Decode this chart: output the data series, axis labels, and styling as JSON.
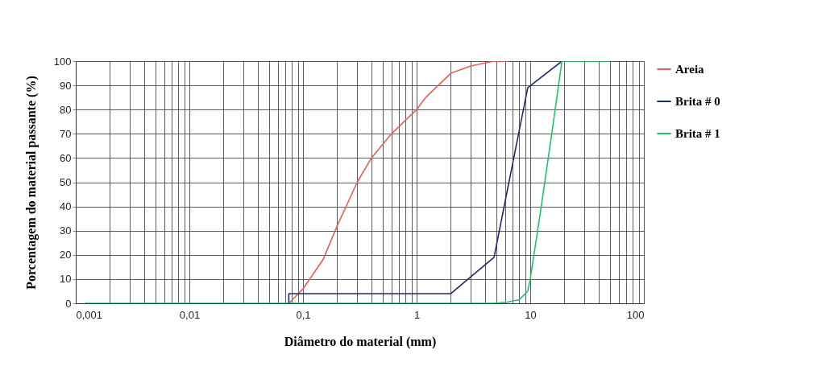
{
  "chart_data": {
    "type": "line",
    "xlabel": "Diâmetro do material (mm)",
    "ylabel": "Porcentagem do material passante (%)",
    "log": "x",
    "grid": true,
    "legend": "right",
    "line_style": "solid",
    "marker": "none",
    "xlim": [
      0.001,
      100
    ],
    "ylim": [
      0,
      100
    ],
    "xticks": [
      {
        "value": 0.001,
        "label": "0,001"
      },
      {
        "value": 0.002,
        "label": null
      },
      {
        "value": 0.003,
        "label": null
      },
      {
        "value": 0.004,
        "label": null
      },
      {
        "value": 0.005,
        "label": null
      },
      {
        "value": 0.006,
        "label": null
      },
      {
        "value": 0.007,
        "label": null
      },
      {
        "value": 0.008,
        "label": null
      },
      {
        "value": 0.009,
        "label": null
      },
      {
        "value": 0.01,
        "label": "0,01"
      },
      {
        "value": 0.02,
        "label": null
      },
      {
        "value": 0.03,
        "label": null
      },
      {
        "value": 0.04,
        "label": null
      },
      {
        "value": 0.05,
        "label": null
      },
      {
        "value": 0.06,
        "label": null
      },
      {
        "value": 0.07,
        "label": null
      },
      {
        "value": 0.08,
        "label": null
      },
      {
        "value": 0.09,
        "label": null
      },
      {
        "value": 0.1,
        "label": "0,1"
      },
      {
        "value": 0.2,
        "label": null
      },
      {
        "value": 0.3,
        "label": null
      },
      {
        "value": 0.4,
        "label": null
      },
      {
        "value": 0.5,
        "label": null
      },
      {
        "value": 0.6,
        "label": null
      },
      {
        "value": 0.7,
        "label": null
      },
      {
        "value": 0.8,
        "label": null
      },
      {
        "value": 0.9,
        "label": null
      },
      {
        "value": 1,
        "label": "1"
      },
      {
        "value": 2,
        "label": null
      },
      {
        "value": 3,
        "label": null
      },
      {
        "value": 4,
        "label": null
      },
      {
        "value": 5,
        "label": null
      },
      {
        "value": 6,
        "label": null
      },
      {
        "value": 7,
        "label": null
      },
      {
        "value": 8,
        "label": null
      },
      {
        "value": 9,
        "label": null
      },
      {
        "value": 10,
        "label": "10"
      },
      {
        "value": 20,
        "label": null
      },
      {
        "value": 30,
        "label": null
      },
      {
        "value": 40,
        "label": null
      },
      {
        "value": 50,
        "label": null
      },
      {
        "value": 60,
        "label": null
      },
      {
        "value": 70,
        "label": null
      },
      {
        "value": 80,
        "label": null
      },
      {
        "value": 90,
        "label": null
      },
      {
        "value": 100,
        "label": "100"
      }
    ],
    "yticks": [
      0,
      10,
      20,
      30,
      40,
      50,
      60,
      70,
      80,
      90,
      100
    ],
    "series": [
      {
        "name": "Areia",
        "color": "#e0625a",
        "x": [
          0.075,
          0.1,
          0.15,
          0.2,
          0.3,
          0.4,
          0.6,
          1.0,
          1.2,
          2.0,
          3.0,
          4.8,
          6.3
        ],
        "values": [
          0,
          6,
          18,
          32,
          50,
          60,
          70,
          80,
          85,
          95,
          98,
          100,
          100
        ]
      },
      {
        "name": "Brita # 0",
        "color": "#1f2a6b",
        "x": [
          0.075,
          0.075,
          2.0,
          4.8,
          9.5,
          19
        ],
        "values": [
          0,
          4,
          4,
          19,
          89,
          100
        ]
      },
      {
        "name": "Brita # 1",
        "color": "#22c06a",
        "x": [
          0.0012,
          4.8,
          6.3,
          8,
          9.5,
          10,
          12.5,
          16,
          19,
          50
        ],
        "values": [
          0,
          0,
          0.5,
          1.5,
          5,
          10,
          40,
          75,
          100,
          100
        ]
      }
    ]
  }
}
